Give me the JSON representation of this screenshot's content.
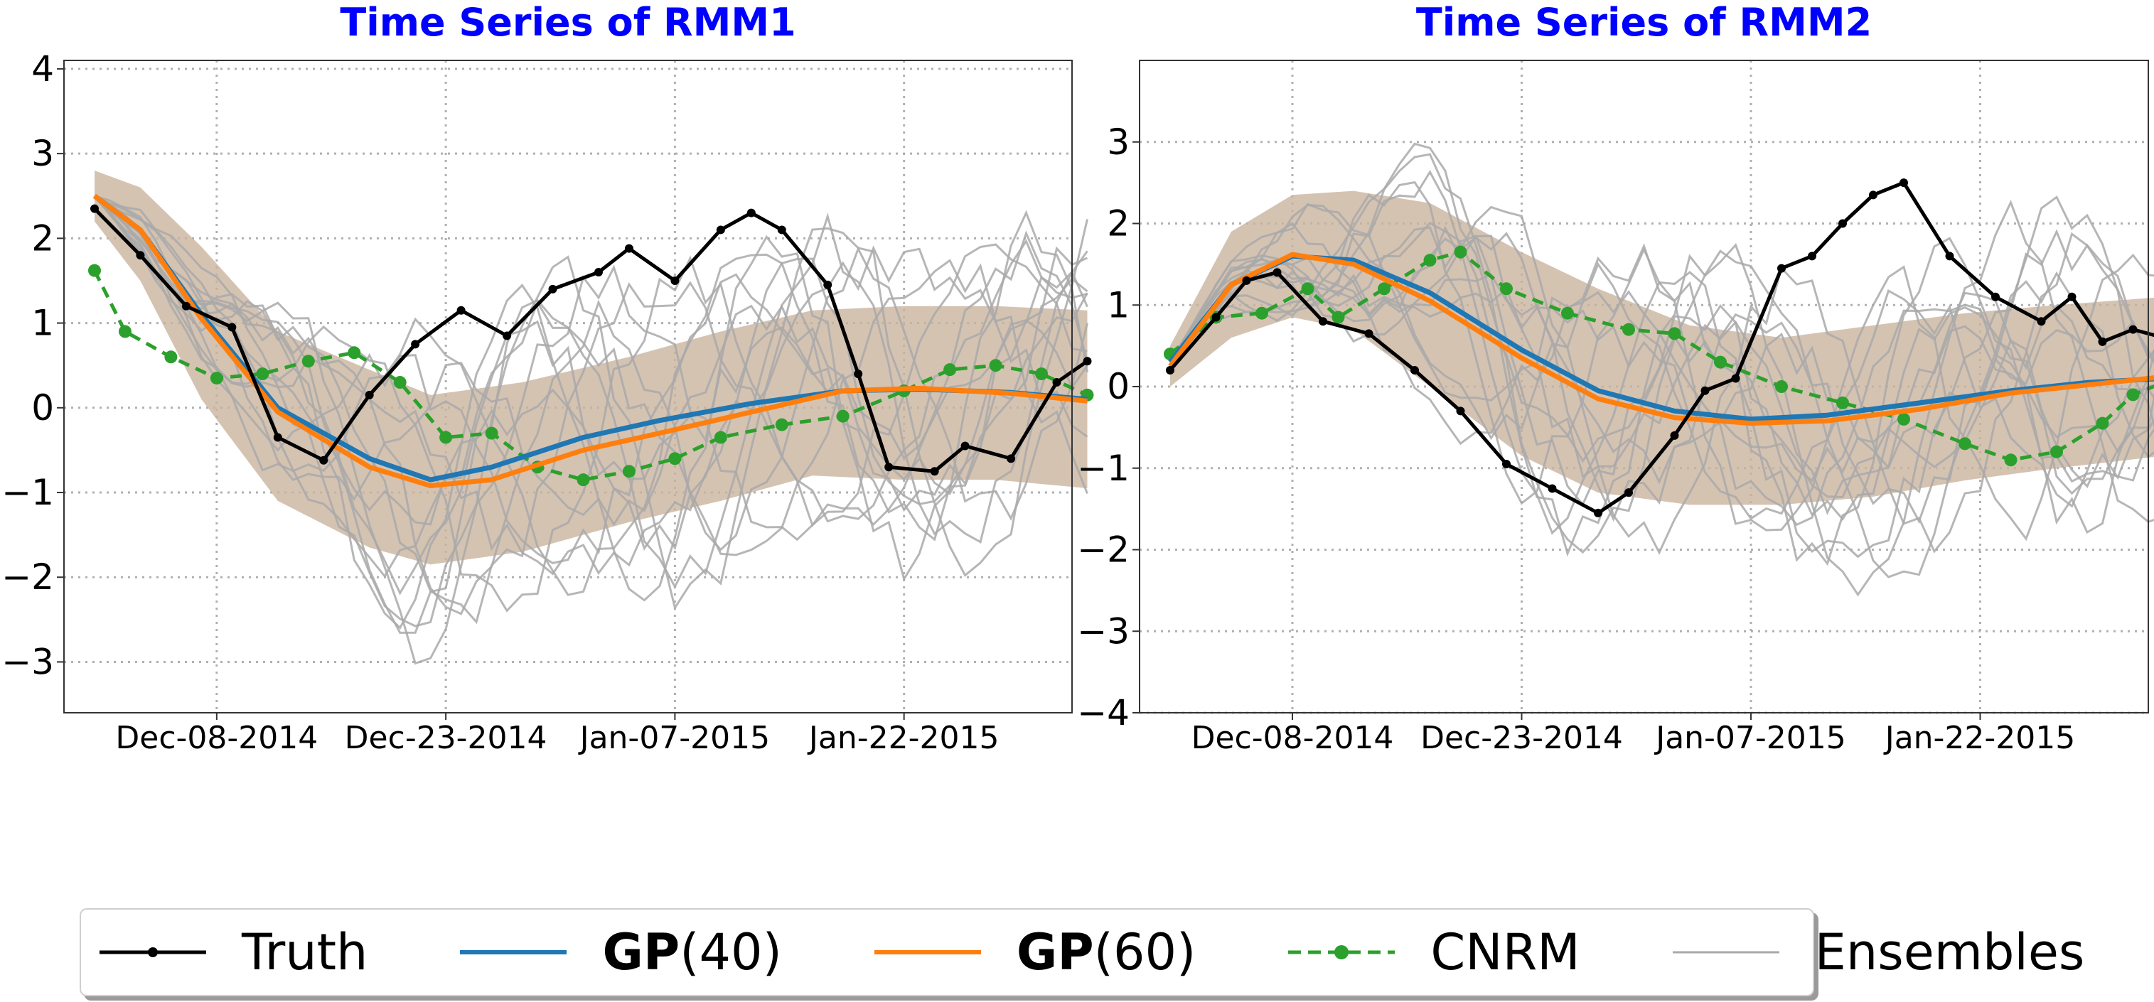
{
  "chart_data": [
    {
      "type": "line",
      "title": "Time Series of RMM1",
      "x_tick_labels": [
        "Dec-08-2014",
        "Dec-23-2014",
        "Jan-07-2015",
        "Jan-22-2015"
      ],
      "x_tick_dates": [
        "2014-12-08",
        "2014-12-23",
        "2015-01-07",
        "2015-01-22"
      ],
      "xlim": [
        "2014-11-28",
        "2015-02-02"
      ],
      "ylim": [
        -3.6,
        4.1
      ],
      "y_ticks": [
        -3,
        -2,
        -1,
        0,
        1,
        2,
        3,
        4
      ],
      "grid": true,
      "series": [
        {
          "name": "Truth",
          "color": "#000000",
          "points": [
            [
              "2014-11-30",
              2.35
            ],
            [
              "2014-12-03",
              1.8
            ],
            [
              "2014-12-06",
              1.2
            ],
            [
              "2014-12-09",
              0.95
            ],
            [
              "2014-12-12",
              -0.35
            ],
            [
              "2014-12-15",
              -0.62
            ],
            [
              "2014-12-18",
              0.15
            ],
            [
              "2014-12-21",
              0.75
            ],
            [
              "2014-12-24",
              1.15
            ],
            [
              "2014-12-27",
              0.85
            ],
            [
              "2014-12-30",
              1.4
            ],
            [
              "2015-01-02",
              1.6
            ],
            [
              "2015-01-04",
              1.88
            ],
            [
              "2015-01-07",
              1.5
            ],
            [
              "2015-01-10",
              2.1
            ],
            [
              "2015-01-12",
              2.3
            ],
            [
              "2015-01-14",
              2.1
            ],
            [
              "2015-01-17",
              1.45
            ],
            [
              "2015-01-19",
              0.4
            ],
            [
              "2015-01-21",
              -0.7
            ],
            [
              "2015-01-24",
              -0.75
            ],
            [
              "2015-01-26",
              -0.45
            ],
            [
              "2015-01-29",
              -0.6
            ],
            [
              "2015-02-01",
              0.3
            ],
            [
              "2015-02-03",
              0.55
            ]
          ]
        },
        {
          "name": "GP(40)",
          "color": "#1f77b4",
          "points": [
            [
              "2014-11-30",
              2.5
            ],
            [
              "2014-12-03",
              2.1
            ],
            [
              "2014-12-07",
              1.1
            ],
            [
              "2014-12-12",
              0.0
            ],
            [
              "2014-12-18",
              -0.6
            ],
            [
              "2014-12-22",
              -0.85
            ],
            [
              "2014-12-26",
              -0.7
            ],
            [
              "2015-01-01",
              -0.35
            ],
            [
              "2015-01-06",
              -0.15
            ],
            [
              "2015-01-12",
              0.05
            ],
            [
              "2015-01-18",
              0.2
            ],
            [
              "2015-01-23",
              0.22
            ],
            [
              "2015-01-29",
              0.18
            ],
            [
              "2015-02-03",
              0.1
            ]
          ]
        },
        {
          "name": "GP(60)",
          "color": "#ff7f0e",
          "points": [
            [
              "2014-11-30",
              2.5
            ],
            [
              "2014-12-03",
              2.1
            ],
            [
              "2014-12-07",
              1.05
            ],
            [
              "2014-12-12",
              -0.05
            ],
            [
              "2014-12-18",
              -0.7
            ],
            [
              "2014-12-22",
              -0.92
            ],
            [
              "2014-12-26",
              -0.85
            ],
            [
              "2015-01-01",
              -0.5
            ],
            [
              "2015-01-06",
              -0.3
            ],
            [
              "2015-01-12",
              -0.05
            ],
            [
              "2015-01-18",
              0.2
            ],
            [
              "2015-01-23",
              0.23
            ],
            [
              "2015-01-29",
              0.17
            ],
            [
              "2015-02-03",
              0.08
            ]
          ]
        },
        {
          "name": "CNRM",
          "color": "#2ca02c",
          "points": [
            [
              "2014-11-30",
              1.62
            ],
            [
              "2014-12-02",
              0.9
            ],
            [
              "2014-12-05",
              0.6
            ],
            [
              "2014-12-08",
              0.35
            ],
            [
              "2014-12-11",
              0.4
            ],
            [
              "2014-12-14",
              0.55
            ],
            [
              "2014-12-17",
              0.65
            ],
            [
              "2014-12-20",
              0.3
            ],
            [
              "2014-12-23",
              -0.35
            ],
            [
              "2014-12-26",
              -0.3
            ],
            [
              "2014-12-29",
              -0.7
            ],
            [
              "2015-01-01",
              -0.85
            ],
            [
              "2015-01-04",
              -0.75
            ],
            [
              "2015-01-07",
              -0.6
            ],
            [
              "2015-01-10",
              -0.35
            ],
            [
              "2015-01-14",
              -0.2
            ],
            [
              "2015-01-18",
              -0.1
            ],
            [
              "2015-01-22",
              0.2
            ],
            [
              "2015-01-25",
              0.45
            ],
            [
              "2015-01-28",
              0.5
            ],
            [
              "2015-01-31",
              0.4
            ],
            [
              "2015-02-03",
              0.15
            ]
          ]
        },
        {
          "name": "Ensembles",
          "color": "#a9a9a9"
        }
      ],
      "band": {
        "color": "#c9b29c",
        "upper": [
          [
            "2014-11-30",
            2.8
          ],
          [
            "2014-12-03",
            2.6
          ],
          [
            "2014-12-07",
            1.9
          ],
          [
            "2014-12-12",
            0.9
          ],
          [
            "2014-12-18",
            0.45
          ],
          [
            "2014-12-22",
            0.15
          ],
          [
            "2014-12-28",
            0.3
          ],
          [
            "2015-01-04",
            0.6
          ],
          [
            "2015-01-10",
            0.9
          ],
          [
            "2015-01-16",
            1.15
          ],
          [
            "2015-01-22",
            1.2
          ],
          [
            "2015-01-28",
            1.2
          ],
          [
            "2015-02-03",
            1.15
          ]
        ],
        "lower": [
          [
            "2014-11-30",
            2.2
          ],
          [
            "2014-12-03",
            1.5
          ],
          [
            "2014-12-07",
            0.1
          ],
          [
            "2014-12-12",
            -1.1
          ],
          [
            "2014-12-18",
            -1.65
          ],
          [
            "2014-12-22",
            -1.85
          ],
          [
            "2014-12-28",
            -1.7
          ],
          [
            "2015-01-04",
            -1.35
          ],
          [
            "2015-01-10",
            -1.1
          ],
          [
            "2015-01-16",
            -0.8
          ],
          [
            "2015-01-22",
            -0.85
          ],
          [
            "2015-01-28",
            -0.85
          ],
          [
            "2015-02-03",
            -0.95
          ]
        ]
      }
    },
    {
      "type": "line",
      "title": "Time Series of RMM2",
      "x_tick_labels": [
        "Dec-08-2014",
        "Dec-23-2014",
        "Jan-07-2015",
        "Jan-22-2015"
      ],
      "x_tick_dates": [
        "2014-12-08",
        "2014-12-23",
        "2015-01-07",
        "2015-01-22"
      ],
      "xlim": [
        "2014-11-28",
        "2015-02-02"
      ],
      "ylim": [
        -4.0,
        4.0
      ],
      "y_ticks": [
        -4,
        -3,
        -2,
        -1,
        0,
        1,
        2,
        3
      ],
      "grid": true,
      "series": [
        {
          "name": "Truth",
          "color": "#000000",
          "points": [
            [
              "2014-11-30",
              0.2
            ],
            [
              "2014-12-03",
              0.85
            ],
            [
              "2014-12-05",
              1.3
            ],
            [
              "2014-12-07",
              1.4
            ],
            [
              "2014-12-10",
              0.8
            ],
            [
              "2014-12-13",
              0.65
            ],
            [
              "2014-12-16",
              0.2
            ],
            [
              "2014-12-19",
              -0.3
            ],
            [
              "2014-12-22",
              -0.95
            ],
            [
              "2014-12-25",
              -1.25
            ],
            [
              "2014-12-28",
              -1.55
            ],
            [
              "2014-12-30",
              -1.3
            ],
            [
              "2015-01-02",
              -0.6
            ],
            [
              "2015-01-04",
              -0.05
            ],
            [
              "2015-01-06",
              0.1
            ],
            [
              "2015-01-09",
              1.45
            ],
            [
              "2015-01-11",
              1.6
            ],
            [
              "2015-01-13",
              2.0
            ],
            [
              "2015-01-15",
              2.35
            ],
            [
              "2015-01-17",
              2.5
            ],
            [
              "2015-01-20",
              1.6
            ],
            [
              "2015-01-23",
              1.1
            ],
            [
              "2015-01-26",
              0.8
            ],
            [
              "2015-01-28",
              1.1
            ],
            [
              "2015-01-30",
              0.55
            ],
            [
              "2015-02-01",
              0.7
            ],
            [
              "2015-02-03",
              0.6
            ]
          ]
        },
        {
          "name": "GP(40)",
          "color": "#1f77b4",
          "points": [
            [
              "2014-11-30",
              0.3
            ],
            [
              "2014-12-04",
              1.25
            ],
            [
              "2014-12-08",
              1.6
            ],
            [
              "2014-12-12",
              1.55
            ],
            [
              "2014-12-17",
              1.15
            ],
            [
              "2014-12-23",
              0.45
            ],
            [
              "2014-12-28",
              -0.05
            ],
            [
              "2015-01-02",
              -0.3
            ],
            [
              "2015-01-07",
              -0.4
            ],
            [
              "2015-01-12",
              -0.35
            ],
            [
              "2015-01-18",
              -0.2
            ],
            [
              "2015-01-24",
              -0.05
            ],
            [
              "2015-01-29",
              0.05
            ],
            [
              "2015-02-03",
              0.1
            ]
          ]
        },
        {
          "name": "GP(60)",
          "color": "#ff7f0e",
          "points": [
            [
              "2014-11-30",
              0.25
            ],
            [
              "2014-12-04",
              1.25
            ],
            [
              "2014-12-08",
              1.62
            ],
            [
              "2014-12-12",
              1.5
            ],
            [
              "2014-12-17",
              1.05
            ],
            [
              "2014-12-23",
              0.35
            ],
            [
              "2014-12-28",
              -0.15
            ],
            [
              "2015-01-02",
              -0.38
            ],
            [
              "2015-01-07",
              -0.45
            ],
            [
              "2015-01-12",
              -0.42
            ],
            [
              "2015-01-18",
              -0.28
            ],
            [
              "2015-01-24",
              -0.08
            ],
            [
              "2015-01-29",
              0.02
            ],
            [
              "2015-02-03",
              0.12
            ]
          ]
        },
        {
          "name": "CNRM",
          "color": "#2ca02c",
          "points": [
            [
              "2014-11-30",
              0.4
            ],
            [
              "2014-12-03",
              0.85
            ],
            [
              "2014-12-06",
              0.9
            ],
            [
              "2014-12-09",
              1.2
            ],
            [
              "2014-12-11",
              0.85
            ],
            [
              "2014-12-14",
              1.2
            ],
            [
              "2014-12-17",
              1.55
            ],
            [
              "2014-12-19",
              1.65
            ],
            [
              "2014-12-22",
              1.2
            ],
            [
              "2014-12-26",
              0.9
            ],
            [
              "2014-12-30",
              0.7
            ],
            [
              "2015-01-02",
              0.65
            ],
            [
              "2015-01-05",
              0.3
            ],
            [
              "2015-01-09",
              0.0
            ],
            [
              "2015-01-13",
              -0.2
            ],
            [
              "2015-01-17",
              -0.4
            ],
            [
              "2015-01-21",
              -0.7
            ],
            [
              "2015-01-24",
              -0.9
            ],
            [
              "2015-01-27",
              -0.8
            ],
            [
              "2015-01-30",
              -0.45
            ],
            [
              "2015-02-01",
              -0.1
            ],
            [
              "2015-02-03",
              0.05
            ]
          ]
        },
        {
          "name": "Ensembles",
          "color": "#a9a9a9"
        }
      ],
      "band": {
        "color": "#c9b29c",
        "upper": [
          [
            "2014-11-30",
            0.5
          ],
          [
            "2014-12-04",
            1.9
          ],
          [
            "2014-12-08",
            2.35
          ],
          [
            "2014-12-12",
            2.4
          ],
          [
            "2014-12-17",
            2.25
          ],
          [
            "2014-12-23",
            1.65
          ],
          [
            "2014-12-28",
            1.2
          ],
          [
            "2015-01-03",
            0.75
          ],
          [
            "2015-01-09",
            0.6
          ],
          [
            "2015-01-15",
            0.75
          ],
          [
            "2015-01-21",
            0.9
          ],
          [
            "2015-01-27",
            1.0
          ],
          [
            "2015-02-03",
            1.1
          ]
        ],
        "lower": [
          [
            "2014-11-30",
            0.0
          ],
          [
            "2014-12-04",
            0.6
          ],
          [
            "2014-12-08",
            0.85
          ],
          [
            "2014-12-12",
            0.7
          ],
          [
            "2014-12-17",
            0.0
          ],
          [
            "2014-12-23",
            -0.85
          ],
          [
            "2014-12-28",
            -1.3
          ],
          [
            "2015-01-03",
            -1.45
          ],
          [
            "2015-01-09",
            -1.45
          ],
          [
            "2015-01-15",
            -1.35
          ],
          [
            "2015-01-21",
            -1.15
          ],
          [
            "2015-01-27",
            -1.0
          ],
          [
            "2015-02-03",
            -0.85
          ]
        ]
      }
    }
  ],
  "legend": {
    "placement": "bottom",
    "items": [
      {
        "label": "Truth",
        "bold": "",
        "rest": "Truth",
        "color": "#000000",
        "style": "solid-marker"
      },
      {
        "label": "GP(40)",
        "bold": "GP",
        "rest": "(40)",
        "color": "#1f77b4",
        "style": "solid"
      },
      {
        "label": "GP(60)",
        "bold": "GP",
        "rest": "(60)",
        "color": "#ff7f0e",
        "style": "solid"
      },
      {
        "label": "CNRM",
        "bold": "",
        "rest": "CNRM",
        "color": "#2ca02c",
        "style": "dashed-marker"
      },
      {
        "label": "Ensembles",
        "bold": "",
        "rest": "Ensembles",
        "color": "#a9a9a9",
        "style": "thin"
      }
    ]
  },
  "colors": {
    "title": "#0000ff"
  }
}
